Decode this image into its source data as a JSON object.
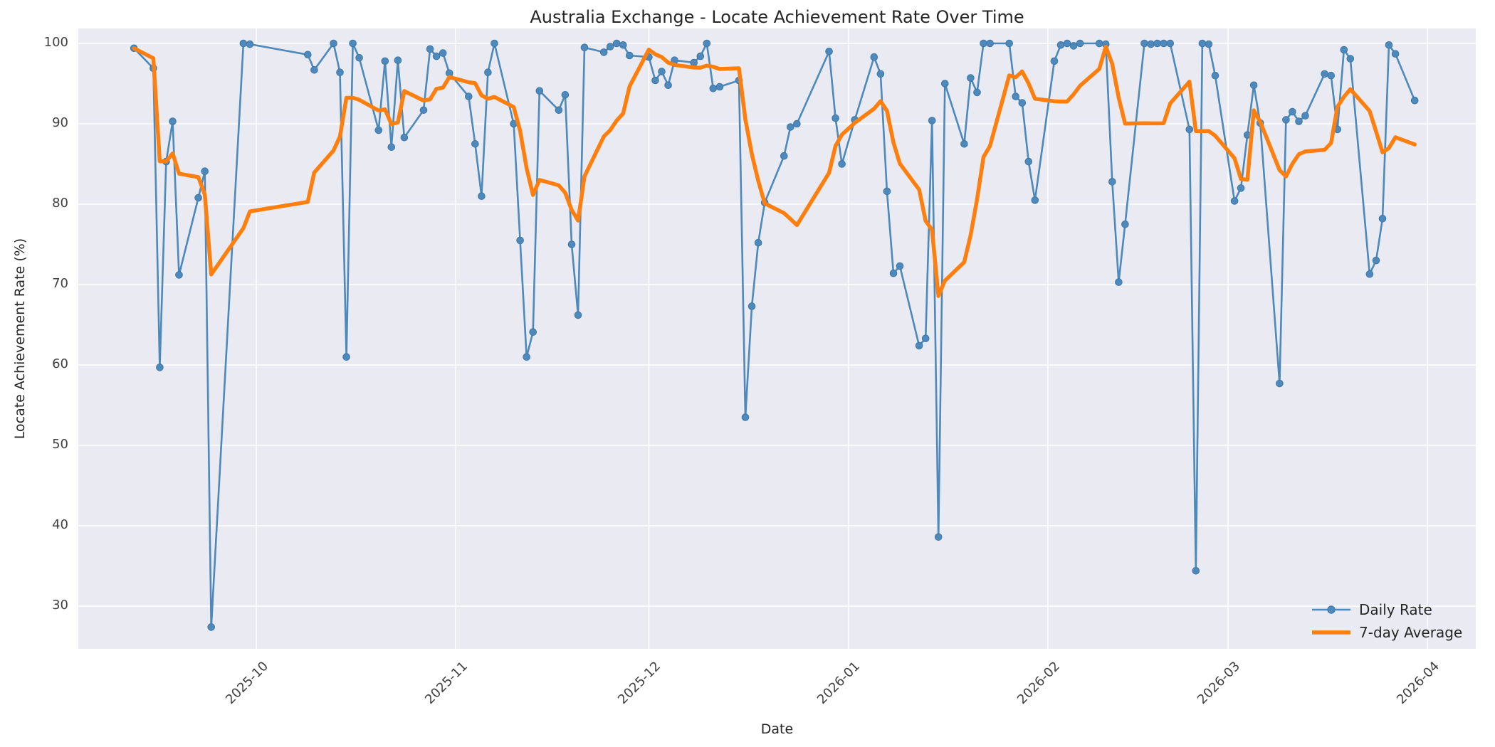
{
  "title": "Australia Exchange - Locate Achievement Rate Over Time",
  "x_axis_label": "Date",
  "y_axis_label": "Locate Achievement Rate (%)",
  "legend": {
    "position": "lower right",
    "items": [
      {
        "label": "Daily Rate"
      },
      {
        "label": "7-day Average"
      }
    ]
  },
  "colors": {
    "figure_background": "#ffffff",
    "plot_background": "#eaeaf2",
    "gridline": "#ffffff",
    "daily_line": "#4d89ba",
    "daily_marker_edge": "#3e78a8",
    "rolling_line": "#ff7f0e",
    "title_text": "#262626",
    "tick_text": "#414141"
  },
  "chart_data": {
    "type": "line",
    "title": "Australia Exchange - Locate Achievement Rate Over Time",
    "xlabel": "Date",
    "ylabel": "Locate Achievement Rate (%)",
    "grid": true,
    "legend_position": "lower right",
    "ylim": [
      24.7,
      101.9
    ],
    "y_ticks": [
      30,
      40,
      50,
      60,
      70,
      80,
      90,
      100
    ],
    "x_ticks": [
      {
        "label": "2025-10",
        "date": "2025-10-01"
      },
      {
        "label": "2025-11",
        "date": "2025-11-01"
      },
      {
        "label": "2025-12",
        "date": "2025-12-01"
      },
      {
        "label": "2026-01",
        "date": "2026-01-01"
      },
      {
        "label": "2026-02",
        "date": "2026-02-01"
      },
      {
        "label": "2026-03",
        "date": "2026-03-01"
      },
      {
        "label": "2026-04",
        "date": "2026-04-01"
      }
    ],
    "series": [
      {
        "name": "Daily Rate",
        "style": "line_with_markers",
        "dates": [
          "2025-09-12",
          "2025-09-15",
          "2025-09-16",
          "2025-09-17",
          "2025-09-18",
          "2025-09-19",
          "2025-09-22",
          "2025-09-23",
          "2025-09-24",
          "2025-09-29",
          "2025-09-30",
          "2025-10-09",
          "2025-10-10",
          "2025-10-13",
          "2025-10-14",
          "2025-10-15",
          "2025-10-16",
          "2025-10-17",
          "2025-10-20",
          "2025-10-21",
          "2025-10-22",
          "2025-10-23",
          "2025-10-24",
          "2025-10-27",
          "2025-10-28",
          "2025-10-29",
          "2025-10-30",
          "2025-10-31",
          "2025-11-03",
          "2025-11-04",
          "2025-11-05",
          "2025-11-06",
          "2025-11-07",
          "2025-11-10",
          "2025-11-11",
          "2025-11-12",
          "2025-11-13",
          "2025-11-14",
          "2025-11-17",
          "2025-11-18",
          "2025-11-19",
          "2025-11-20",
          "2025-11-21",
          "2025-11-24",
          "2025-11-25",
          "2025-11-26",
          "2025-11-27",
          "2025-11-28",
          "2025-12-01",
          "2025-12-02",
          "2025-12-03",
          "2025-12-04",
          "2025-12-05",
          "2025-12-08",
          "2025-12-09",
          "2025-12-10",
          "2025-12-11",
          "2025-12-12",
          "2025-12-15",
          "2025-12-16",
          "2025-12-17",
          "2025-12-18",
          "2025-12-19",
          "2025-12-22",
          "2025-12-23",
          "2025-12-24",
          "2025-12-29",
          "2025-12-30",
          "2025-12-31",
          "2026-01-02",
          "2026-01-05",
          "2026-01-06",
          "2026-01-07",
          "2026-01-08",
          "2026-01-09",
          "2026-01-12",
          "2026-01-13",
          "2026-01-14",
          "2026-01-15",
          "2026-01-16",
          "2026-01-19",
          "2026-01-20",
          "2026-01-21",
          "2026-01-22",
          "2026-01-23",
          "2026-01-26",
          "2026-01-27",
          "2026-01-28",
          "2026-01-29",
          "2026-01-30",
          "2026-02-02",
          "2026-02-03",
          "2026-02-04",
          "2026-02-05",
          "2026-02-06",
          "2026-02-09",
          "2026-02-10",
          "2026-02-11",
          "2026-02-12",
          "2026-02-13",
          "2026-02-16",
          "2026-02-17",
          "2026-02-18",
          "2026-02-19",
          "2026-02-20",
          "2026-02-23",
          "2026-02-24",
          "2026-02-25",
          "2026-02-26",
          "2026-02-27",
          "2026-03-02",
          "2026-03-03",
          "2026-03-04",
          "2026-03-05",
          "2026-03-06",
          "2026-03-09",
          "2026-03-10",
          "2026-03-11",
          "2026-03-12",
          "2026-03-13",
          "2026-03-16",
          "2026-03-17",
          "2026-03-18",
          "2026-03-19",
          "2026-03-20",
          "2026-03-23",
          "2026-03-24",
          "2026-03-25",
          "2026-03-26",
          "2026-03-27",
          "2026-03-30"
        ],
        "values": [
          99.4,
          96.9,
          59.7,
          85.3,
          90.3,
          71.2,
          80.8,
          84.1,
          27.4,
          100.0,
          99.9,
          98.6,
          96.7,
          100.0,
          96.4,
          61.0,
          100.0,
          98.2,
          89.2,
          97.8,
          87.1,
          97.9,
          88.3,
          91.7,
          99.3,
          98.4,
          98.8,
          96.3,
          93.4,
          87.5,
          81.0,
          96.4,
          100.0,
          90.0,
          75.5,
          61.0,
          64.1,
          94.1,
          91.7,
          93.6,
          75.0,
          66.2,
          99.5,
          98.9,
          99.6,
          100.0,
          99.8,
          98.5,
          98.3,
          95.4,
          96.5,
          94.8,
          97.9,
          97.6,
          98.4,
          100.0,
          94.4,
          94.6,
          95.4,
          53.5,
          67.3,
          75.2,
          80.2,
          86.0,
          89.6,
          90.0,
          99.0,
          90.7,
          85.0,
          90.5,
          98.3,
          96.2,
          81.6,
          71.4,
          72.3,
          62.4,
          63.3,
          90.4,
          38.6,
          95.0,
          87.5,
          95.7,
          93.9,
          100.0,
          100.0,
          100.0,
          93.4,
          92.6,
          85.3,
          80.5,
          97.8,
          99.8,
          100.0,
          99.7,
          100.0,
          100.0,
          99.9,
          82.8,
          70.3,
          77.5,
          100.0,
          99.9,
          100.0,
          100.0,
          100.0,
          89.3,
          34.4,
          100.0,
          99.9,
          96.0,
          80.4,
          82.0,
          88.6,
          94.8,
          90.1,
          57.7,
          90.5,
          91.5,
          90.3,
          91.0,
          96.2,
          96.0,
          89.3,
          99.2,
          98.1,
          71.3,
          73.0,
          78.2,
          99.8,
          98.7,
          92.9
        ]
      },
      {
        "name": "7-day Average",
        "style": "thick_line",
        "derived_from": "Daily Rate",
        "derivation": "trailing rolling mean of last 7 observations, min_periods=1"
      }
    ]
  }
}
